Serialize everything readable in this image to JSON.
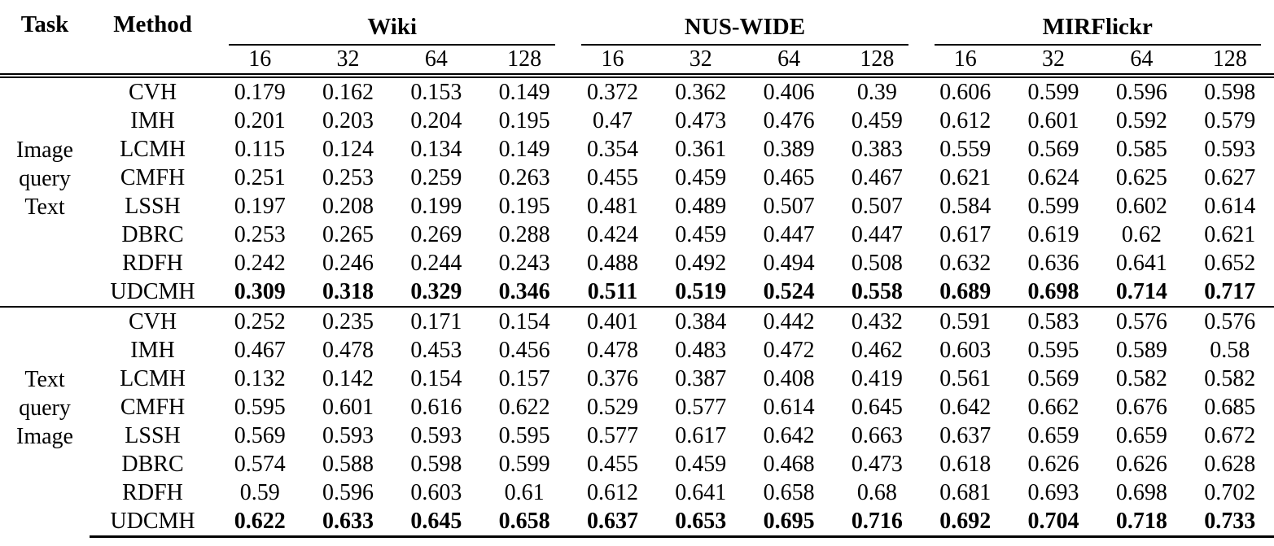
{
  "colors": {
    "text": "#000000",
    "background": "#ffffff",
    "rule": "#000000"
  },
  "table": {
    "task_header": "Task",
    "method_header": "Method",
    "datasets": [
      "Wiki",
      "NUS-WIDE",
      "MIRFlickr"
    ],
    "bits": [
      "16",
      "32",
      "64",
      "128"
    ],
    "sections": [
      {
        "task_lines": [
          "Image",
          "query",
          "Text"
        ],
        "rows": [
          {
            "method": "CVH",
            "bold": false,
            "values": [
              "0.179",
              "0.162",
              "0.153",
              "0.149",
              "0.372",
              "0.362",
              "0.406",
              "0.39",
              "0.606",
              "0.599",
              "0.596",
              "0.598"
            ]
          },
          {
            "method": "IMH",
            "bold": false,
            "values": [
              "0.201",
              "0.203",
              "0.204",
              "0.195",
              "0.47",
              "0.473",
              "0.476",
              "0.459",
              "0.612",
              "0.601",
              "0.592",
              "0.579"
            ]
          },
          {
            "method": "LCMH",
            "bold": false,
            "values": [
              "0.115",
              "0.124",
              "0.134",
              "0.149",
              "0.354",
              "0.361",
              "0.389",
              "0.383",
              "0.559",
              "0.569",
              "0.585",
              "0.593"
            ]
          },
          {
            "method": "CMFH",
            "bold": false,
            "values": [
              "0.251",
              "0.253",
              "0.259",
              "0.263",
              "0.455",
              "0.459",
              "0.465",
              "0.467",
              "0.621",
              "0.624",
              "0.625",
              "0.627"
            ]
          },
          {
            "method": "LSSH",
            "bold": false,
            "values": [
              "0.197",
              "0.208",
              "0.199",
              "0.195",
              "0.481",
              "0.489",
              "0.507",
              "0.507",
              "0.584",
              "0.599",
              "0.602",
              "0.614"
            ]
          },
          {
            "method": "DBRC",
            "bold": false,
            "values": [
              "0.253",
              "0.265",
              "0.269",
              "0.288",
              "0.424",
              "0.459",
              "0.447",
              "0.447",
              "0.617",
              "0.619",
              "0.62",
              "0.621"
            ]
          },
          {
            "method": "RDFH",
            "bold": false,
            "values": [
              "0.242",
              "0.246",
              "0.244",
              "0.243",
              "0.488",
              "0.492",
              "0.494",
              "0.508",
              "0.632",
              "0.636",
              "0.641",
              "0.652"
            ]
          },
          {
            "method": "UDCMH",
            "bold": true,
            "values": [
              "0.309",
              "0.318",
              "0.329",
              "0.346",
              "0.511",
              "0.519",
              "0.524",
              "0.558",
              "0.689",
              "0.698",
              "0.714",
              "0.717"
            ]
          }
        ]
      },
      {
        "task_lines": [
          "Text",
          "query",
          "Image"
        ],
        "rows": [
          {
            "method": "CVH",
            "bold": false,
            "values": [
              "0.252",
              "0.235",
              "0.171",
              "0.154",
              "0.401",
              "0.384",
              "0.442",
              "0.432",
              "0.591",
              "0.583",
              "0.576",
              "0.576"
            ]
          },
          {
            "method": "IMH",
            "bold": false,
            "values": [
              "0.467",
              "0.478",
              "0.453",
              "0.456",
              "0.478",
              "0.483",
              "0.472",
              "0.462",
              "0.603",
              "0.595",
              "0.589",
              "0.58"
            ]
          },
          {
            "method": "LCMH",
            "bold": false,
            "values": [
              "0.132",
              "0.142",
              "0.154",
              "0.157",
              "0.376",
              "0.387",
              "0.408",
              "0.419",
              "0.561",
              "0.569",
              "0.582",
              "0.582"
            ]
          },
          {
            "method": "CMFH",
            "bold": false,
            "values": [
              "0.595",
              "0.601",
              "0.616",
              "0.622",
              "0.529",
              "0.577",
              "0.614",
              "0.645",
              "0.642",
              "0.662",
              "0.676",
              "0.685"
            ]
          },
          {
            "method": "LSSH",
            "bold": false,
            "values": [
              "0.569",
              "0.593",
              "0.593",
              "0.595",
              "0.577",
              "0.617",
              "0.642",
              "0.663",
              "0.637",
              "0.659",
              "0.659",
              "0.672"
            ]
          },
          {
            "method": "DBRC",
            "bold": false,
            "values": [
              "0.574",
              "0.588",
              "0.598",
              "0.599",
              "0.455",
              "0.459",
              "0.468",
              "0.473",
              "0.618",
              "0.626",
              "0.626",
              "0.628"
            ]
          },
          {
            "method": "RDFH",
            "bold": false,
            "values": [
              "0.59",
              "0.596",
              "0.603",
              "0.61",
              "0.612",
              "0.641",
              "0.658",
              "0.68",
              "0.681",
              "0.693",
              "0.698",
              "0.702"
            ]
          },
          {
            "method": "UDCMH",
            "bold": true,
            "values": [
              "0.622",
              "0.633",
              "0.645",
              "0.658",
              "0.637",
              "0.653",
              "0.695",
              "0.716",
              "0.692",
              "0.704",
              "0.718",
              "0.733"
            ]
          }
        ]
      }
    ]
  }
}
